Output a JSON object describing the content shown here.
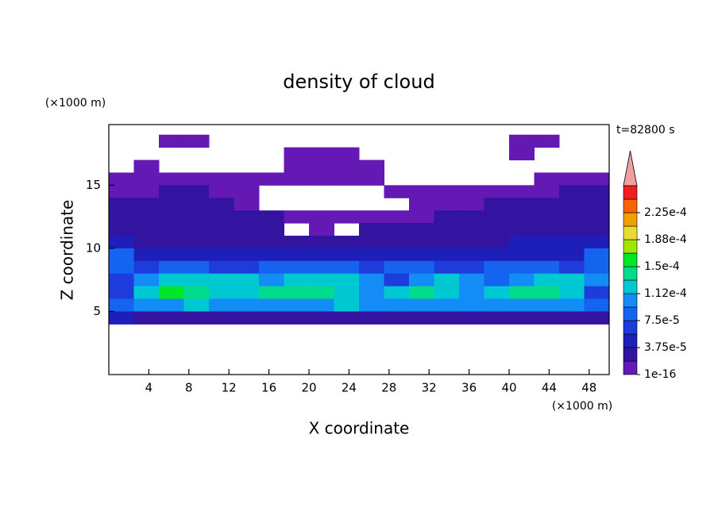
{
  "chart_data": {
    "type": "contour",
    "title": "density of cloud",
    "y_unit": "(×1000 m)",
    "x_unit": "(×1000 m)",
    "xlabel": "X coordinate",
    "ylabel": "Z coordinate",
    "annotation": "t=82800 s",
    "xlim": [
      0,
      50
    ],
    "xticks": [
      4,
      8,
      12,
      16,
      20,
      24,
      28,
      32,
      36,
      40,
      44,
      48
    ],
    "ylim": [
      0,
      19.8
    ],
    "yticks": [
      5,
      10,
      15
    ],
    "colorbar": {
      "levels": [
        {
          "value": 1e-16,
          "label": "1e-16"
        },
        {
          "value": 3.75e-05,
          "label": "3.75e-5"
        },
        {
          "value": 7.5e-05,
          "label": "7.5e-5"
        },
        {
          "value": 0.000112,
          "label": "1.12e-4"
        },
        {
          "value": 0.00015,
          "label": "1.5e-4"
        },
        {
          "value": 0.000188,
          "label": "1.88e-4"
        },
        {
          "value": 0.000225,
          "label": "2.25e-4"
        }
      ],
      "colors": [
        "#6418b4",
        "#3214a0",
        "#1e1eb9",
        "#1e3cdc",
        "#1464f0",
        "#148cf5",
        "#00c8d2",
        "#00dc8c",
        "#00e628",
        "#a0e600",
        "#e6dc32",
        "#f0a000",
        "#fa6400",
        "#f01e1e"
      ],
      "over_color": "#f0a0a0"
    },
    "field": {
      "x": [
        1.25,
        3.75,
        6.25,
        8.75,
        11.25,
        13.75,
        16.25,
        18.75,
        21.25,
        23.75,
        26.25,
        28.75,
        31.25,
        33.75,
        36.25,
        38.75,
        41.25,
        43.75,
        46.25,
        48.75
      ],
      "z": [
        18.5,
        17.5,
        16.5,
        15.5,
        14.5,
        13.5,
        12.5,
        11.5,
        10.5,
        9.5,
        8.5,
        7.5,
        6.5,
        5.5,
        4.5
      ],
      "values": [
        [
          null,
          null,
          1e-05,
          1e-05,
          null,
          null,
          null,
          null,
          null,
          null,
          null,
          null,
          null,
          null,
          null,
          null,
          1e-05,
          1e-05,
          null,
          null
        ],
        [
          null,
          null,
          null,
          null,
          null,
          null,
          null,
          1e-05,
          1e-05,
          1e-05,
          null,
          null,
          null,
          null,
          null,
          null,
          1e-05,
          null,
          null,
          null
        ],
        [
          null,
          1e-05,
          null,
          null,
          null,
          null,
          null,
          1e-05,
          1e-05,
          1e-05,
          1e-05,
          null,
          null,
          null,
          null,
          null,
          null,
          null,
          null,
          null
        ],
        [
          1e-05,
          1e-05,
          1e-05,
          1e-05,
          1e-05,
          1e-05,
          1e-05,
          1e-05,
          1e-05,
          1e-05,
          1e-05,
          null,
          null,
          null,
          null,
          null,
          null,
          1e-05,
          1e-05,
          1e-05
        ],
        [
          1e-05,
          1e-05,
          2.8e-05,
          2.8e-05,
          1e-05,
          1e-05,
          null,
          null,
          null,
          null,
          null,
          1e-05,
          1e-05,
          1e-05,
          1e-05,
          1e-05,
          1e-05,
          1e-05,
          2.8e-05,
          2.8e-05
        ],
        [
          2.8e-05,
          2.8e-05,
          2.8e-05,
          2.8e-05,
          2.8e-05,
          1e-05,
          null,
          null,
          null,
          null,
          null,
          null,
          1e-05,
          1e-05,
          1e-05,
          2.8e-05,
          2.8e-05,
          2.8e-05,
          2.8e-05,
          2.8e-05
        ],
        [
          2.8e-05,
          2.8e-05,
          2.8e-05,
          2.8e-05,
          2.8e-05,
          2.8e-05,
          2.8e-05,
          1e-05,
          1e-05,
          1e-05,
          1e-05,
          1e-05,
          1e-05,
          2.8e-05,
          2.8e-05,
          2.8e-05,
          2.8e-05,
          2.8e-05,
          2.8e-05,
          2.8e-05
        ],
        [
          2.8e-05,
          2.8e-05,
          2.8e-05,
          2.8e-05,
          2.8e-05,
          2.8e-05,
          2.8e-05,
          null,
          1e-05,
          null,
          2.8e-05,
          2.8e-05,
          2.8e-05,
          2.8e-05,
          2.8e-05,
          2.8e-05,
          2.8e-05,
          2.8e-05,
          2.8e-05,
          2.8e-05
        ],
        [
          4.7e-05,
          2.8e-05,
          2.8e-05,
          2.8e-05,
          2.8e-05,
          2.8e-05,
          2.8e-05,
          2.8e-05,
          2.8e-05,
          2.8e-05,
          2.8e-05,
          2.8e-05,
          2.8e-05,
          2.8e-05,
          2.8e-05,
          2.8e-05,
          4.7e-05,
          4.7e-05,
          4.7e-05,
          4.7e-05
        ],
        [
          8.4e-05,
          4.7e-05,
          4.7e-05,
          4.7e-05,
          4.7e-05,
          4.7e-05,
          4.7e-05,
          4.7e-05,
          4.7e-05,
          4.7e-05,
          4.7e-05,
          4.7e-05,
          4.7e-05,
          4.7e-05,
          4.7e-05,
          4.7e-05,
          4.7e-05,
          4.7e-05,
          4.7e-05,
          8.4e-05
        ],
        [
          8.4e-05,
          6.5e-05,
          8.4e-05,
          8.4e-05,
          6.5e-05,
          6.5e-05,
          8.4e-05,
          8.4e-05,
          8.4e-05,
          8.4e-05,
          6.5e-05,
          8.4e-05,
          8.4e-05,
          6.5e-05,
          6.5e-05,
          8.4e-05,
          8.4e-05,
          8.4e-05,
          6.5e-05,
          8.4e-05
        ],
        [
          6.5e-05,
          0.000103,
          0.000122,
          0.000122,
          0.000122,
          0.000122,
          0.000103,
          0.000122,
          0.000122,
          0.000122,
          0.000103,
          6.5e-05,
          0.000103,
          0.000122,
          0.000103,
          8.4e-05,
          0.000103,
          0.000122,
          0.000122,
          0.000103
        ],
        [
          6.5e-05,
          0.000122,
          0.00016,
          0.00014,
          0.000122,
          0.000122,
          0.00014,
          0.00014,
          0.00014,
          0.000122,
          0.000103,
          0.000122,
          0.00014,
          0.000122,
          0.000103,
          0.000122,
          0.00014,
          0.00014,
          0.000122,
          6.5e-05
        ],
        [
          8.4e-05,
          0.000103,
          0.000103,
          0.000122,
          0.000103,
          0.000103,
          0.000103,
          0.000103,
          0.000103,
          0.000122,
          0.000103,
          0.000103,
          0.000103,
          0.000103,
          0.000103,
          0.000103,
          0.000103,
          0.000103,
          0.000103,
          8.4e-05
        ],
        [
          4.7e-05,
          2.8e-05,
          2.8e-05,
          2.8e-05,
          2.8e-05,
          2.8e-05,
          2.8e-05,
          2.8e-05,
          2.8e-05,
          2.8e-05,
          2.8e-05,
          2.8e-05,
          2.8e-05,
          2.8e-05,
          2.8e-05,
          2.8e-05,
          2.8e-05,
          2.8e-05,
          2.8e-05,
          2.8e-05
        ]
      ]
    }
  }
}
